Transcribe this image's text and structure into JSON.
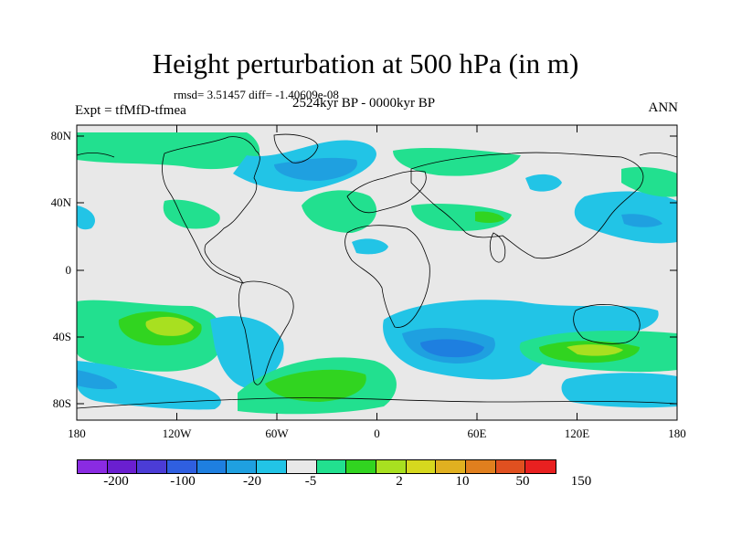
{
  "title": "Height perturbation at 500 hPa (in m)",
  "rmsd_text": "rmsd= 3.51457 diff= -1.40609e-08",
  "period": "2524kyr BP - 0000kyr BP",
  "experiment": "Expt = tfMfD-tfmea",
  "season": "ANN",
  "lat_ticks": [
    "80N",
    "40N",
    "0",
    "40S",
    "80S"
  ],
  "lon_ticks": [
    "180",
    "120W",
    "60W",
    "0",
    "60E",
    "120E",
    "180"
  ],
  "colorbar": {
    "colors": [
      "#8a2be2",
      "#6a1fd0",
      "#4b3cd6",
      "#2f5fe0",
      "#1e7fe0",
      "#1fa0e0",
      "#22c4e6",
      "#e8e8e8",
      "#22e08f",
      "#31d420",
      "#a8e020",
      "#d6d81e",
      "#e0b020",
      "#e07f1e",
      "#e05020",
      "#e82020"
    ],
    "labels": [
      "-200",
      "-100",
      "-20",
      "-5",
      "2",
      "10",
      "50",
      "150"
    ]
  },
  "map_colors": {
    "neutral": "#e8e8e8",
    "cyan": "#22c4e6",
    "lightblue": "#1fa0e0",
    "blue": "#1e7fe0",
    "green_light": "#22e08f",
    "green": "#31d420",
    "yellow_green": "#a8e020"
  }
}
